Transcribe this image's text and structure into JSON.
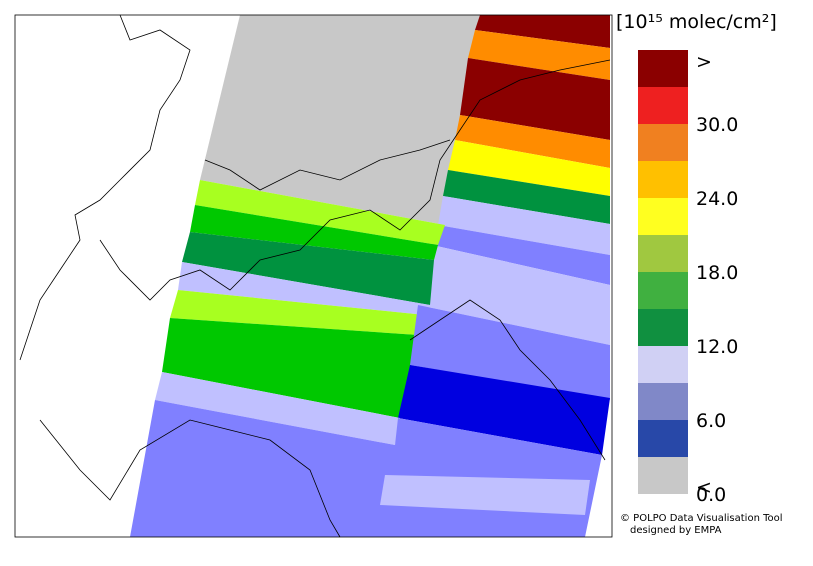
{
  "legend": {
    "title": "[10¹⁵ molec/cm²]",
    "colors": [
      "#8b0000",
      "#ee2020",
      "#f08020",
      "#ffc000",
      "#ffff20",
      "#a0c840",
      "#40b040",
      "#109040",
      "#d0d0f4",
      "#8088c8",
      "#2848a8",
      "#c8c8c8"
    ],
    "labels": [
      ">",
      "30.0",
      "24.0",
      "18.0",
      "12.0",
      "6.0",
      "0.0",
      "<"
    ]
  },
  "credit": [
    "© POLPO Data Visualisation Tool",
    "designed by EMPA"
  ]
}
